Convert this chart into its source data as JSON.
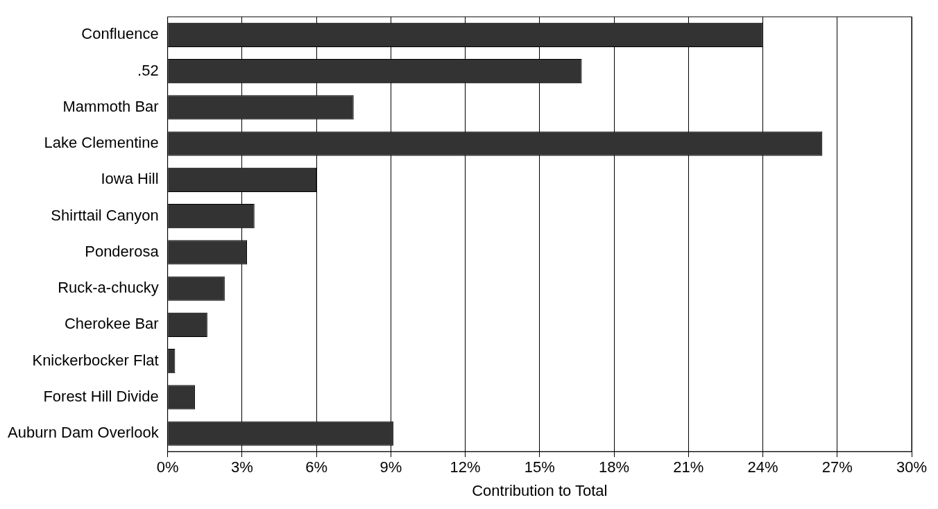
{
  "chart_data": {
    "type": "bar",
    "orientation": "horizontal",
    "xlabel": "Contribution to Total",
    "categories": [
      "Confluence",
      ".52",
      "Mammoth Bar",
      "Lake Clementine",
      "Iowa Hill",
      "Shirttail Canyon",
      "Ponderosa",
      "Ruck-a-chucky",
      "Cherokee Bar",
      "Knickerbocker Flat",
      "Forest Hill Divide",
      "Auburn Dam Overlook"
    ],
    "values": [
      24,
      16.7,
      7.5,
      26.4,
      6,
      3.5,
      3.2,
      2.3,
      1.6,
      0.3,
      1.1,
      9.1
    ],
    "color": "#333333",
    "xlim": [
      0,
      30
    ],
    "xticks": [
      {
        "value": 0,
        "label": "0%"
      },
      {
        "value": 3,
        "label": "3%"
      },
      {
        "value": 6,
        "label": "6%"
      },
      {
        "value": 9,
        "label": "9%"
      },
      {
        "value": 12,
        "label": "12%"
      },
      {
        "value": 15,
        "label": "15%"
      },
      {
        "value": 18,
        "label": "18%"
      },
      {
        "value": 21,
        "label": "21%"
      },
      {
        "value": 24,
        "label": "24%"
      },
      {
        "value": 27,
        "label": "27%"
      },
      {
        "value": 30,
        "label": "30%"
      }
    ],
    "grid": "x",
    "legend": false
  }
}
